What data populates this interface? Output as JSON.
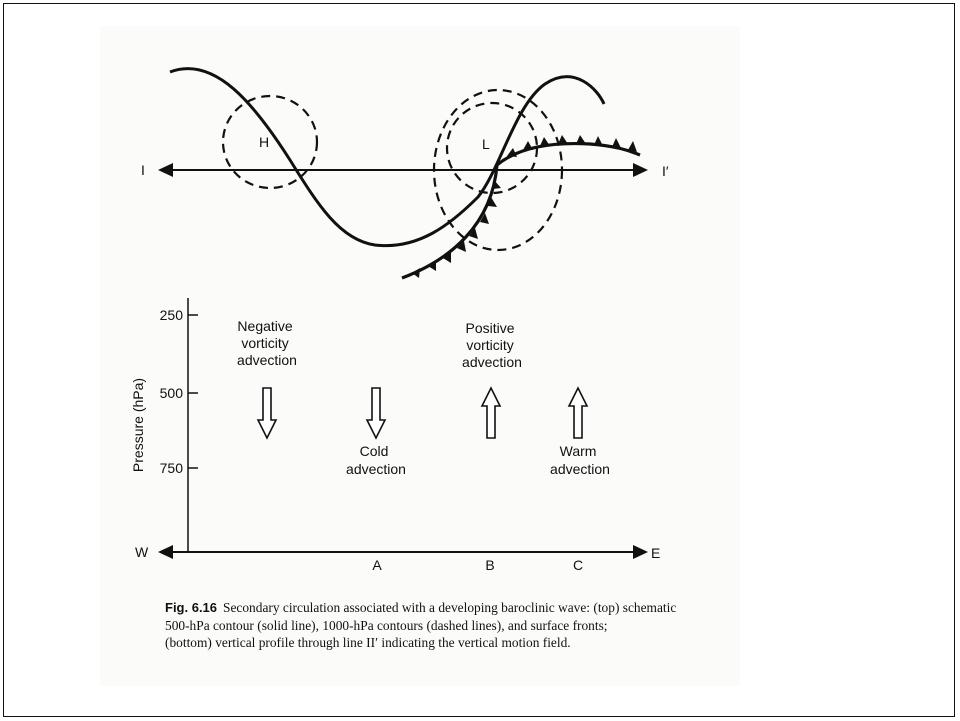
{
  "top_diagram": {
    "labels": {
      "high": "H",
      "low": "L",
      "line_start": "I",
      "line_end": "I′"
    }
  },
  "profile": {
    "ylabel": "Pressure (hPa)",
    "y_ticks": [
      "250",
      "500",
      "750"
    ],
    "axis_west": "W",
    "axis_east": "E",
    "points": [
      "A",
      "B",
      "C"
    ],
    "annotations": {
      "neg_vort": [
        "Negative",
        "vorticity",
        "advection"
      ],
      "pos_vort": [
        "Positive",
        "vorticity",
        "advection"
      ],
      "cold": [
        "Cold",
        "advection"
      ],
      "warm": [
        "Warm",
        "advection"
      ]
    }
  },
  "caption": {
    "fig": "Fig. 6.16",
    "line1": "Secondary circulation associated with a developing baroclinic wave: (top) schematic",
    "line2": "500-hPa contour (solid line), 1000-hPa contours (dashed lines), and surface fronts;",
    "line3": "(bottom) vertical profile through line II′ indicating the vertical motion field."
  }
}
